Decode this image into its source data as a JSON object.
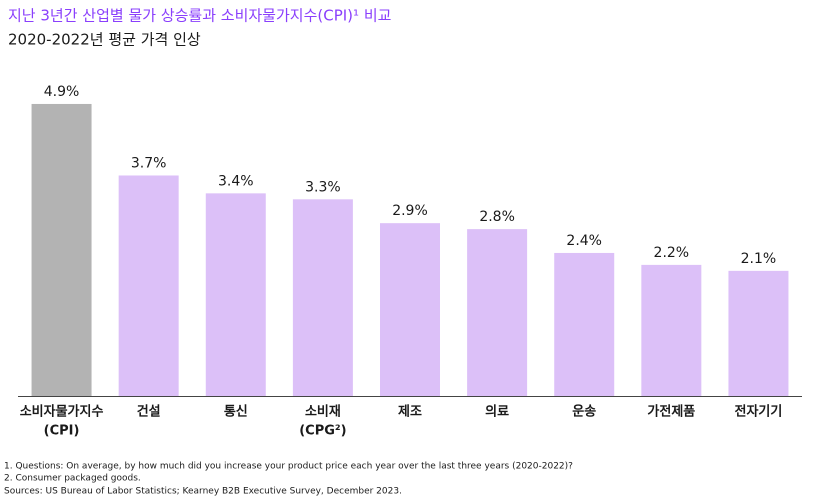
{
  "chart_data": {
    "type": "bar",
    "title": "지난 3년간 산업별 물가 상승률과 소비자물가지수(CPI)¹ 비교",
    "subtitle": "2020-2022년 평균 가격 인상",
    "categories": [
      [
        "소비자물가지수",
        "(CPI)"
      ],
      [
        "건설"
      ],
      [
        "통신"
      ],
      [
        "소비재",
        "(CPG²)"
      ],
      [
        "제조"
      ],
      [
        "의료"
      ],
      [
        "운송"
      ],
      [
        "가전제품"
      ],
      [
        "전자기기"
      ]
    ],
    "values": [
      4.9,
      3.7,
      3.4,
      3.3,
      2.9,
      2.8,
      2.4,
      2.2,
      2.1
    ],
    "value_labels": [
      "4.9%",
      "3.7%",
      "3.4%",
      "3.3%",
      "2.9%",
      "2.8%",
      "2.4%",
      "2.2%",
      "2.1%"
    ],
    "colors": [
      "#b3b3b3",
      "#dcc0f8",
      "#dcc0f8",
      "#dcc0f8",
      "#dcc0f8",
      "#dcc0f8",
      "#dcc0f8",
      "#dcc0f8",
      "#dcc0f8"
    ],
    "ylim": [
      0,
      5
    ]
  },
  "footnotes": [
    "1. Questions: On average, by how much did you increase your product price each year over the last three years (2020-2022)?",
    "2. Consumer packaged goods.",
    "Sources: US Bureau of Labor Statistics; Kearney B2B Executive Survey, December 2023."
  ]
}
